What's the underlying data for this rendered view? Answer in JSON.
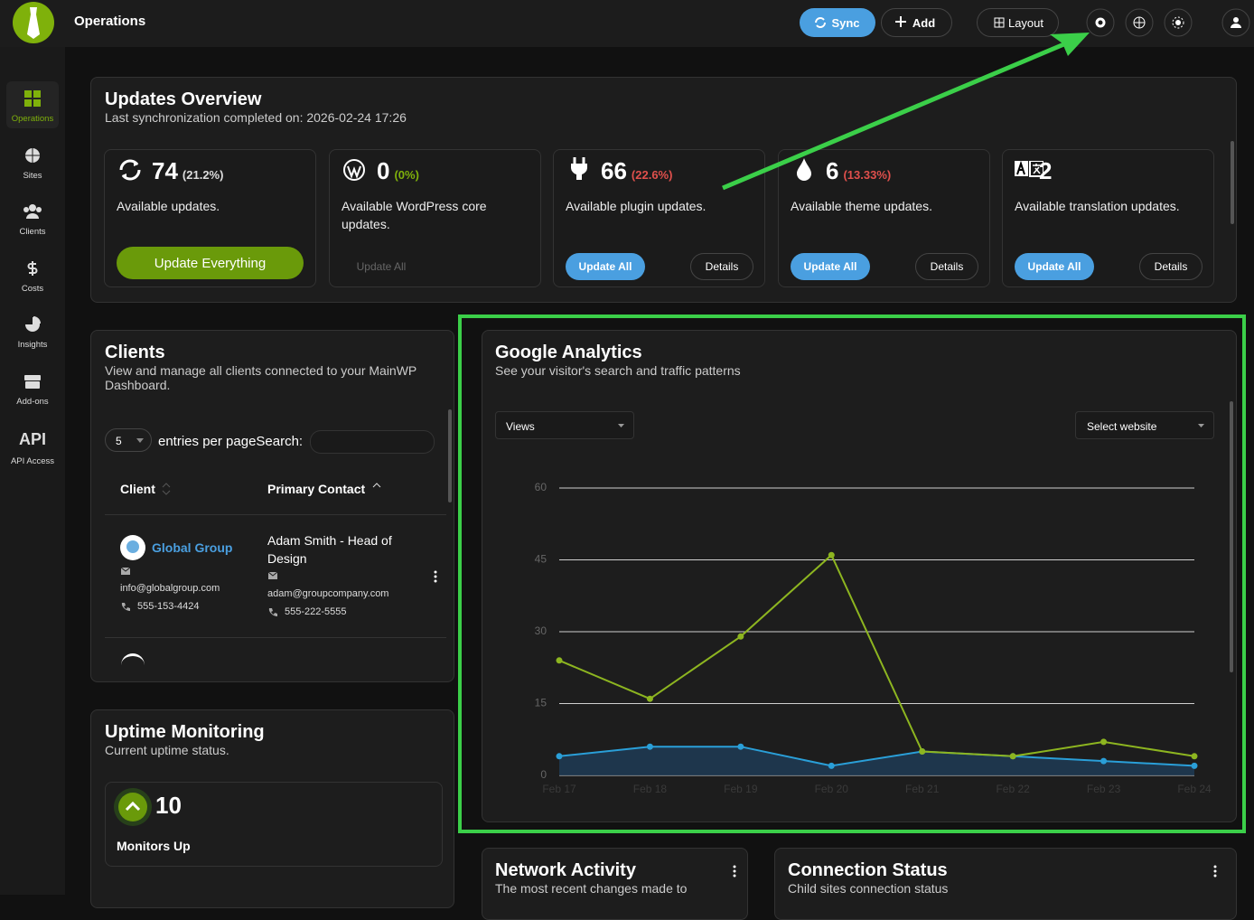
{
  "topbar": {
    "title": "Operations",
    "buttons": [
      "Sync",
      "Add",
      "Layout"
    ]
  },
  "sidebar": {
    "items": [
      "Operations",
      "Sites",
      "Clients",
      "Costs",
      "Insights",
      "Add-ons",
      "API Access"
    ],
    "api_icon": "API"
  },
  "updates": {
    "title": "Updates Overview",
    "subtitle": "Last synchronization completed on: 2026-02-24 17:26",
    "cards": [
      {
        "count": 74,
        "percent": "(21.2%)",
        "label": "Available updates.",
        "buttons": [
          "Update Everything"
        ]
      },
      {
        "count": 0,
        "percent": "(0%)",
        "label": "Available WordPress core updates.",
        "buttons": [
          "Update All"
        ]
      },
      {
        "count": 66,
        "percent": "(22.6%)",
        "label": "Available plugin updates.",
        "buttons": [
          "Update All",
          "Details"
        ]
      },
      {
        "count": 6,
        "percent": "(13.33%)",
        "label": "Available theme updates.",
        "buttons": [
          "Update All",
          "Details"
        ]
      },
      {
        "count": 2,
        "label": "Available translation updates.",
        "buttons": [
          "Update All",
          "Details"
        ]
      }
    ]
  },
  "clients": {
    "title": "Clients",
    "subtitle": "View and manage all clients connected to your MainWP Dashboard.",
    "entries": "5",
    "entries_text": "entries per page",
    "search_label": "Search:",
    "columns": [
      "Client",
      "Primary Contact"
    ],
    "rows": [
      {
        "name": "Global Group",
        "email": "info@globalgroup.com",
        "phone": "555-153-4424",
        "contact": "Adam Smith - Head of Design",
        "contact_email": "adam@groupcompany.com",
        "contact_phone": "555-222-5555"
      }
    ]
  },
  "uptime": {
    "title": "Uptime Monitoring",
    "subtitle": "Current uptime status.",
    "count": 10,
    "label": "Monitors Up"
  },
  "analytics": {
    "title": "Google Analytics",
    "subtitle": "See your visitor's search and traffic patterns",
    "metric": "Views",
    "site_select": "Select website"
  },
  "chart_data": {
    "type": "line",
    "categories": [
      "Feb 17",
      "Feb 18",
      "Feb 19",
      "Feb 20",
      "Feb 21",
      "Feb 22",
      "Feb 23",
      "Feb 24"
    ],
    "series": [
      {
        "color": "#8db520",
        "values": [
          24,
          16,
          29,
          46,
          5,
          4,
          7,
          4
        ]
      },
      {
        "color": "#2a9fd8",
        "area": true,
        "values": [
          4,
          6,
          6,
          2,
          5,
          4,
          3,
          2
        ]
      }
    ],
    "ylim": [
      0,
      60
    ],
    "yticks": [
      0,
      15,
      30,
      45,
      60
    ],
    "grid": true
  },
  "network": {
    "title": "Network Activity",
    "subtitle": "The most recent changes made to"
  },
  "connection": {
    "title": "Connection Status",
    "subtitle": "Child sites connection status"
  }
}
